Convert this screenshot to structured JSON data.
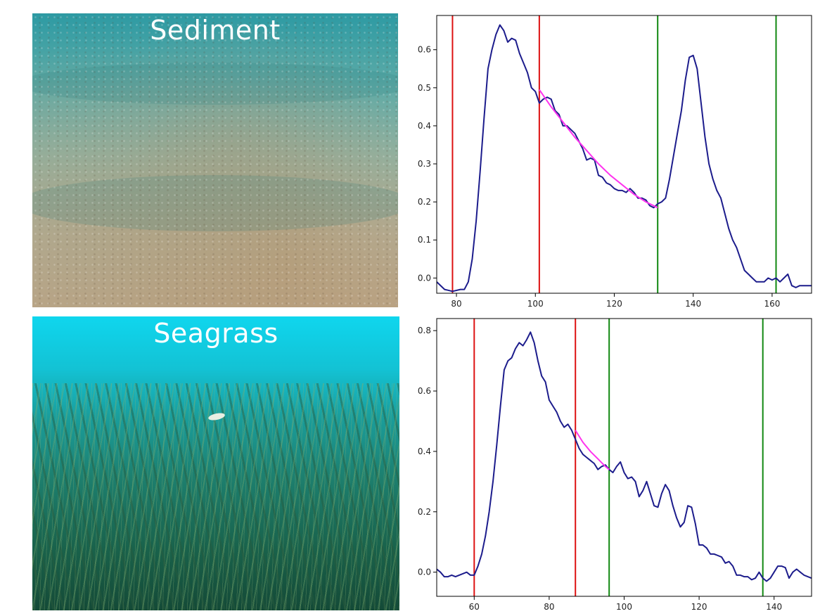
{
  "photos": {
    "sediment": {
      "label": "Sediment"
    },
    "seagrass": {
      "label": "Seagrass"
    }
  },
  "chart_data": [
    {
      "type": "line",
      "xlim": [
        75,
        170
      ],
      "ylim": [
        -0.04,
        0.69
      ],
      "xticks": [
        80,
        100,
        120,
        140,
        160
      ],
      "yticks": [
        0.0,
        0.1,
        0.2,
        0.3,
        0.4,
        0.5,
        0.6
      ],
      "grid": false,
      "colors": {
        "series": "#1c1c8c",
        "fit": "#ff33ee",
        "red": "#dd1111",
        "green": "#118811"
      },
      "series": [
        {
          "color": "#1c1c8c",
          "x": [
            75,
            77,
            79,
            81,
            82,
            83,
            84,
            85,
            86,
            87,
            88,
            89,
            90,
            91,
            92,
            93,
            94,
            95,
            96,
            97,
            98,
            99,
            100,
            101,
            102,
            103,
            104,
            105,
            106,
            107,
            108,
            109,
            110,
            111,
            112,
            113,
            114,
            115,
            116,
            117,
            118,
            119,
            120,
            121,
            122,
            123,
            124,
            125,
            126,
            127,
            128,
            129,
            130,
            131,
            132,
            133,
            134,
            135,
            136,
            137,
            138,
            139,
            140,
            141,
            142,
            143,
            144,
            145,
            146,
            147,
            148,
            149,
            150,
            151,
            152,
            153,
            154,
            155,
            156,
            157,
            158,
            159,
            160,
            161,
            162,
            163,
            164,
            165,
            166,
            167,
            168,
            170
          ],
          "y": [
            -0.01,
            -0.03,
            -0.035,
            -0.03,
            -0.03,
            -0.01,
            0.05,
            0.15,
            0.28,
            0.42,
            0.55,
            0.6,
            0.64,
            0.665,
            0.65,
            0.62,
            0.63,
            0.625,
            0.59,
            0.565,
            0.54,
            0.5,
            0.49,
            0.46,
            0.47,
            0.475,
            0.47,
            0.44,
            0.43,
            0.4,
            0.4,
            0.39,
            0.38,
            0.36,
            0.34,
            0.31,
            0.315,
            0.31,
            0.27,
            0.265,
            0.25,
            0.245,
            0.235,
            0.23,
            0.23,
            0.225,
            0.235,
            0.225,
            0.21,
            0.21,
            0.205,
            0.19,
            0.185,
            0.195,
            0.2,
            0.21,
            0.26,
            0.32,
            0.38,
            0.44,
            0.52,
            0.58,
            0.585,
            0.55,
            0.46,
            0.37,
            0.3,
            0.26,
            0.23,
            0.21,
            0.17,
            0.13,
            0.1,
            0.08,
            0.05,
            0.02,
            0.01,
            0.0,
            -0.01,
            -0.01,
            -0.01,
            0.0,
            -0.005,
            0.0,
            -0.01,
            0.0,
            0.01,
            -0.02,
            -0.025,
            -0.02,
            -0.02,
            -0.02
          ]
        },
        {
          "color": "#ff33ee",
          "x": [
            101,
            104,
            107,
            110,
            113,
            116,
            119,
            122,
            125,
            128,
            131
          ],
          "y": [
            0.495,
            0.45,
            0.41,
            0.37,
            0.335,
            0.3,
            0.27,
            0.245,
            0.22,
            0.2,
            0.185
          ]
        }
      ],
      "vlines": [
        {
          "x": 79,
          "color": "#dd1111"
        },
        {
          "x": 101,
          "color": "#dd1111"
        },
        {
          "x": 131,
          "color": "#118811"
        },
        {
          "x": 161,
          "color": "#118811"
        }
      ]
    },
    {
      "type": "line",
      "xlim": [
        50,
        150
      ],
      "ylim": [
        -0.08,
        0.84
      ],
      "xticks": [
        60,
        80,
        100,
        120,
        140
      ],
      "yticks": [
        0.0,
        0.2,
        0.4,
        0.6,
        0.8
      ],
      "grid": false,
      "colors": {
        "series": "#1c1c8c",
        "fit": "#ff33ee",
        "red": "#dd1111",
        "green": "#118811"
      },
      "series": [
        {
          "color": "#1c1c8c",
          "x": [
            50,
            51,
            52,
            53,
            54,
            55,
            56,
            57,
            58,
            59,
            60,
            61,
            62,
            63,
            64,
            65,
            66,
            67,
            68,
            69,
            70,
            71,
            72,
            73,
            74,
            75,
            76,
            77,
            78,
            79,
            80,
            81,
            82,
            83,
            84,
            85,
            86,
            87,
            88,
            89,
            90,
            91,
            92,
            93,
            94,
            95,
            96,
            97,
            98,
            99,
            100,
            101,
            102,
            103,
            104,
            105,
            106,
            107,
            108,
            109,
            110,
            111,
            112,
            113,
            114,
            115,
            116,
            117,
            118,
            119,
            120,
            121,
            122,
            123,
            124,
            125,
            126,
            127,
            128,
            129,
            130,
            131,
            132,
            133,
            134,
            135,
            136,
            137,
            138,
            139,
            140,
            141,
            142,
            143,
            144,
            145,
            146,
            147,
            148,
            150
          ],
          "y": [
            0.01,
            0.0,
            -0.015,
            -0.015,
            -0.01,
            -0.015,
            -0.01,
            -0.005,
            0.0,
            -0.01,
            -0.01,
            0.02,
            0.06,
            0.12,
            0.2,
            0.3,
            0.42,
            0.55,
            0.67,
            0.7,
            0.71,
            0.74,
            0.76,
            0.75,
            0.77,
            0.795,
            0.76,
            0.7,
            0.65,
            0.63,
            0.57,
            0.55,
            0.53,
            0.5,
            0.48,
            0.49,
            0.47,
            0.44,
            0.41,
            0.39,
            0.38,
            0.37,
            0.36,
            0.34,
            0.35,
            0.355,
            0.34,
            0.33,
            0.35,
            0.365,
            0.33,
            0.31,
            0.315,
            0.3,
            0.25,
            0.27,
            0.3,
            0.26,
            0.22,
            0.215,
            0.26,
            0.29,
            0.27,
            0.22,
            0.18,
            0.15,
            0.165,
            0.22,
            0.215,
            0.16,
            0.09,
            0.09,
            0.08,
            0.06,
            0.06,
            0.055,
            0.05,
            0.03,
            0.035,
            0.02,
            -0.01,
            -0.01,
            -0.015,
            -0.015,
            -0.025,
            -0.02,
            0.0,
            -0.02,
            -0.03,
            -0.02,
            0.0,
            0.02,
            0.02,
            0.015,
            -0.02,
            0.0,
            0.01,
            0.0,
            -0.01,
            -0.02
          ]
        },
        {
          "color": "#ff33ee",
          "x": [
            87,
            89,
            91,
            93,
            95,
            96
          ],
          "y": [
            0.47,
            0.43,
            0.4,
            0.375,
            0.35,
            0.34
          ]
        }
      ],
      "vlines": [
        {
          "x": 60,
          "color": "#dd1111"
        },
        {
          "x": 87,
          "color": "#dd1111"
        },
        {
          "x": 96,
          "color": "#118811"
        },
        {
          "x": 137,
          "color": "#118811"
        }
      ]
    }
  ]
}
